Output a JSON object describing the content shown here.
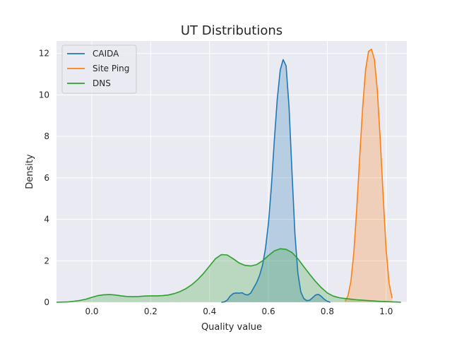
{
  "chart_data": {
    "type": "area",
    "title": "UT Distributions",
    "xlabel": "Quality value",
    "ylabel": "Density",
    "xlim": [
      -0.12,
      1.07
    ],
    "ylim": [
      0,
      12.6
    ],
    "xticks": [
      "0.0",
      "0.2",
      "0.4",
      "0.6",
      "0.8",
      "1.0"
    ],
    "xtick_values": [
      0.0,
      0.2,
      0.4,
      0.6,
      0.8,
      1.0
    ],
    "yticks": [
      "0",
      "2",
      "4",
      "6",
      "8",
      "10",
      "12"
    ],
    "ytick_values": [
      0,
      2,
      4,
      6,
      8,
      10,
      12
    ],
    "grid": true,
    "legend_position": "top-left",
    "series": [
      {
        "name": "CAIDA",
        "color": "#1f77b4",
        "x": [
          0.44,
          0.45,
          0.46,
          0.47,
          0.48,
          0.49,
          0.5,
          0.51,
          0.52,
          0.53,
          0.54,
          0.55,
          0.56,
          0.57,
          0.58,
          0.59,
          0.6,
          0.61,
          0.62,
          0.63,
          0.64,
          0.65,
          0.66,
          0.67,
          0.68,
          0.69,
          0.7,
          0.71,
          0.72,
          0.73,
          0.74,
          0.75,
          0.76,
          0.77,
          0.78,
          0.79,
          0.8,
          0.81
        ],
        "y": [
          0.0,
          0.02,
          0.1,
          0.3,
          0.42,
          0.45,
          0.44,
          0.46,
          0.38,
          0.35,
          0.45,
          0.7,
          0.95,
          1.3,
          1.8,
          2.6,
          3.8,
          5.6,
          7.8,
          9.8,
          11.2,
          11.7,
          11.4,
          9.4,
          6.3,
          3.3,
          1.4,
          0.5,
          0.18,
          0.08,
          0.1,
          0.22,
          0.35,
          0.38,
          0.28,
          0.14,
          0.05,
          0.0
        ]
      },
      {
        "name": "Site Ping",
        "color": "#ff7f0e",
        "x": [
          0.86,
          0.87,
          0.88,
          0.89,
          0.9,
          0.91,
          0.92,
          0.93,
          0.94,
          0.95,
          0.96,
          0.97,
          0.98,
          0.99,
          1.0,
          1.01,
          1.02
        ],
        "y": [
          0.05,
          0.3,
          1.0,
          2.4,
          4.5,
          7.0,
          9.4,
          11.2,
          12.1,
          12.2,
          11.7,
          10.2,
          7.8,
          5.0,
          2.5,
          0.9,
          0.2
        ]
      },
      {
        "name": "DNS",
        "color": "#2ca02c",
        "x": [
          -0.12,
          -0.1,
          -0.08,
          -0.06,
          -0.04,
          -0.02,
          0.0,
          0.02,
          0.04,
          0.06,
          0.08,
          0.1,
          0.12,
          0.14,
          0.16,
          0.18,
          0.2,
          0.22,
          0.24,
          0.26,
          0.28,
          0.3,
          0.32,
          0.34,
          0.36,
          0.38,
          0.4,
          0.42,
          0.44,
          0.46,
          0.48,
          0.5,
          0.52,
          0.54,
          0.56,
          0.58,
          0.6,
          0.62,
          0.64,
          0.66,
          0.68,
          0.7,
          0.72,
          0.74,
          0.76,
          0.78,
          0.8,
          0.82,
          0.84,
          0.86,
          0.88,
          0.9,
          0.92,
          0.94,
          0.96,
          0.98,
          1.0,
          1.02,
          1.04,
          1.05
        ],
        "y": [
          0.0,
          0.01,
          0.02,
          0.05,
          0.09,
          0.15,
          0.24,
          0.32,
          0.36,
          0.37,
          0.35,
          0.31,
          0.28,
          0.27,
          0.28,
          0.3,
          0.31,
          0.31,
          0.32,
          0.35,
          0.42,
          0.52,
          0.66,
          0.85,
          1.1,
          1.4,
          1.75,
          2.1,
          2.3,
          2.28,
          2.1,
          1.9,
          1.78,
          1.75,
          1.82,
          2.0,
          2.25,
          2.48,
          2.58,
          2.55,
          2.4,
          2.1,
          1.72,
          1.35,
          1.0,
          0.7,
          0.45,
          0.3,
          0.22,
          0.18,
          0.15,
          0.12,
          0.1,
          0.08,
          0.06,
          0.04,
          0.03,
          0.02,
          0.01,
          0.0
        ]
      }
    ]
  }
}
